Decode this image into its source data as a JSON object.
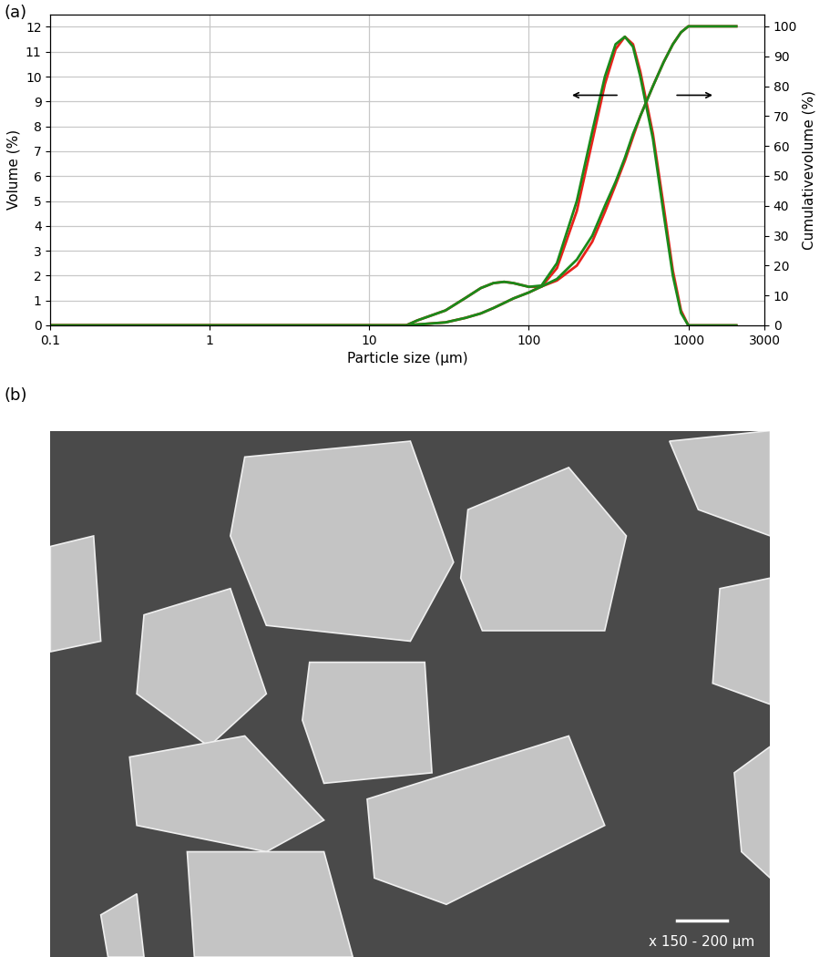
{
  "panel_labels": [
    "(a)",
    "(b)"
  ],
  "chart_data": {
    "type": "line",
    "xlabel": "Particle size (µm)",
    "ylabel": "Volume (%)",
    "y2label": "Cumulativevolume (%)",
    "log": "x",
    "grid": true,
    "xlim": [
      0.1,
      3000
    ],
    "xticks": [
      0.1,
      1,
      10,
      100,
      1000,
      3000
    ],
    "ylim": [
      0,
      12.5
    ],
    "yticks": [
      0,
      1,
      2,
      3,
      4,
      5,
      6,
      7,
      8,
      9,
      10,
      11,
      12
    ],
    "y2lim": [
      0,
      104
    ],
    "y2ticks": [
      0,
      10,
      20,
      30,
      40,
      50,
      60,
      70,
      80,
      90,
      100
    ],
    "x": [
      0.1,
      10,
      17,
      20,
      30,
      40,
      50,
      60,
      70,
      80,
      100,
      120,
      150,
      200,
      250,
      300,
      350,
      400,
      450,
      500,
      600,
      700,
      800,
      900,
      1000,
      2000
    ],
    "series": [
      {
        "color": "#e8221b",
        "values": [
          0,
          0,
          0,
          0.2,
          0.6,
          1.1,
          1.5,
          1.7,
          1.75,
          1.7,
          1.55,
          1.55,
          2.3,
          4.6,
          7.4,
          9.7,
          11.1,
          11.6,
          11.3,
          10.2,
          7.7,
          4.8,
          2.2,
          0.6,
          0,
          0
        ]
      },
      {
        "color": "#1a8a1a",
        "values": [
          0,
          0,
          0,
          0.2,
          0.6,
          1.1,
          1.5,
          1.7,
          1.75,
          1.7,
          1.55,
          1.6,
          2.5,
          5,
          7.8,
          10,
          11.3,
          11.6,
          11.2,
          10,
          7.5,
          4.5,
          2,
          0.5,
          0,
          0
        ]
      },
      {
        "color": "#e8221b",
        "axis": "y2",
        "values": [
          0,
          0,
          0,
          0.3,
          1,
          2.5,
          4,
          5.8,
          7.5,
          9,
          11,
          13,
          15,
          20,
          28,
          38,
          47,
          55,
          63,
          70,
          80,
          88,
          94,
          98,
          100,
          100
        ]
      },
      {
        "color": "#1a8a1a",
        "axis": "y2",
        "values": [
          0,
          0,
          0,
          0.3,
          1,
          2.5,
          4,
          5.8,
          7.5,
          9,
          11,
          13,
          15.5,
          22,
          30,
          40,
          48,
          56,
          64,
          70,
          80,
          88,
          94,
          98,
          100,
          100
        ]
      }
    ]
  },
  "image": {
    "scale_bar": "x 150 - 200 µm"
  }
}
